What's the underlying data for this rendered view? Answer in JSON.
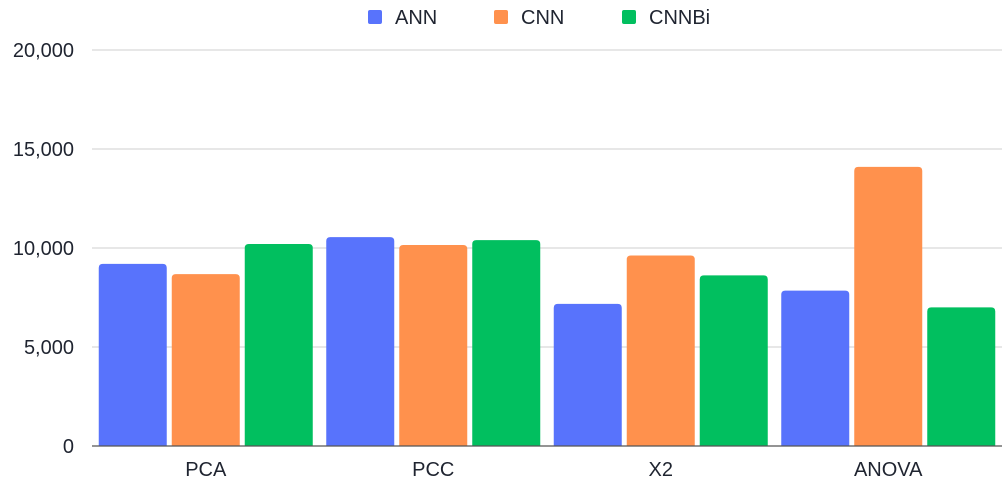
{
  "chart_data": {
    "type": "bar",
    "title": "",
    "xlabel": "",
    "ylabel": "",
    "categories": [
      "PCA",
      "PCC",
      "X2",
      "ANOVA"
    ],
    "series": [
      {
        "name": "ANN",
        "color": "#5873fc",
        "values": [
          9200,
          10550,
          7180,
          7850
        ]
      },
      {
        "name": "CNN",
        "color": "#ff914d",
        "values": [
          8680,
          10150,
          9620,
          14100
        ]
      },
      {
        "name": "CNNBi",
        "color": "#01bf5f",
        "values": [
          10200,
          10400,
          8620,
          7000
        ]
      }
    ],
    "ylim": [
      0,
      20000
    ],
    "yticks": [
      0,
      5000,
      10000,
      15000,
      20000
    ],
    "ytick_labels": [
      "0",
      "5,000",
      "10,000",
      "15,000",
      "20,000"
    ],
    "grid": true,
    "legend_position": "top-center"
  }
}
